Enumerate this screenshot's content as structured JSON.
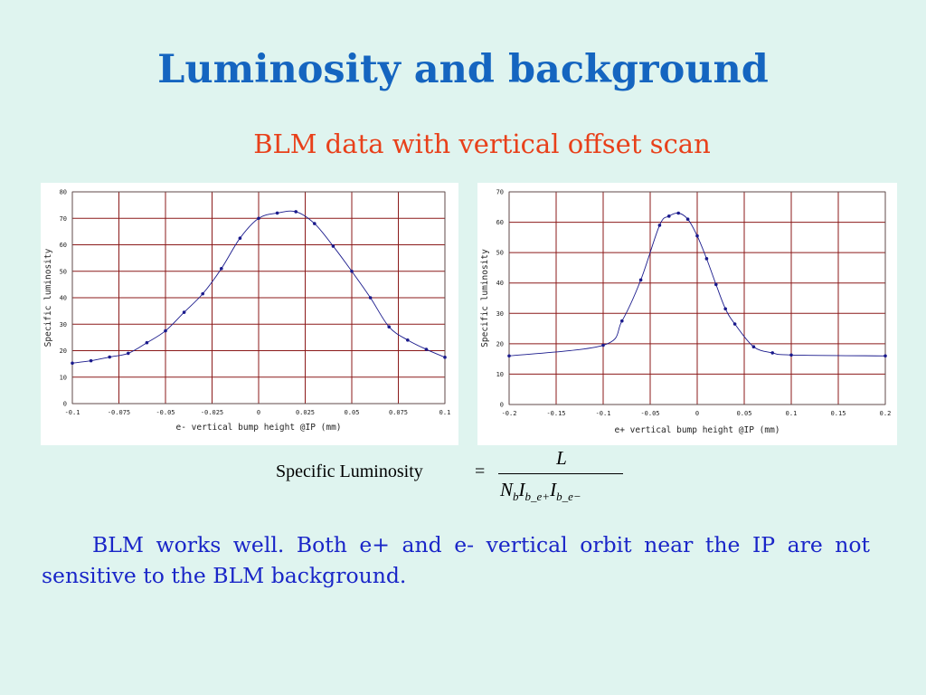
{
  "slide": {
    "title": "Luminosity and background",
    "subtitle": "BLM data with vertical offset scan",
    "body": "BLM works well. Both e+ and e- vertical orbit near the IP are not sensitive to the BLM background."
  },
  "formula": {
    "label": "Specific Luminosity",
    "equals": "=",
    "numerator": "L",
    "denominator": [
      "N",
      "b",
      "I",
      "b_e+",
      "I",
      "b_e−"
    ]
  },
  "colors": {
    "title": "#1565c0",
    "subtitle": "#e8401a",
    "body": "#1a26c8",
    "grid": "#8b1a1a",
    "series": "#1a1a8c"
  },
  "chart_data": [
    {
      "type": "line",
      "xlabel": "e- vertical bump height @IP (mm)",
      "ylabel": "Specific luminosity",
      "xlim": [
        -0.1,
        0.1
      ],
      "ylim": [
        0,
        80
      ],
      "xticks": [
        -0.1,
        -0.075,
        -0.05,
        -0.025,
        0,
        0.025,
        0.05,
        0.075,
        0.1
      ],
      "xtick_labels": [
        "-0.1",
        "-0.075",
        "-0.05",
        "-0.025",
        "0",
        "0.025",
        "0.05",
        "0.075",
        "0.1"
      ],
      "yticks": [
        0,
        10,
        20,
        30,
        40,
        50,
        60,
        70,
        80
      ],
      "ytick_labels": [
        "0",
        "10",
        "20",
        "30",
        "40",
        "50",
        "60",
        "70",
        "80"
      ],
      "grid": true,
      "x": [
        -0.1,
        -0.09,
        -0.08,
        -0.07,
        -0.06,
        -0.05,
        -0.04,
        -0.03,
        -0.02,
        -0.01,
        0,
        0.01,
        0.02,
        0.03,
        0.04,
        0.05,
        0.06,
        0.07,
        0.08,
        0.09,
        0.1
      ],
      "y": [
        15.3,
        16.2,
        17.6,
        19,
        23,
        27.5,
        34.5,
        41.5,
        51,
        62.5,
        70,
        72,
        72.5,
        68,
        59.5,
        50,
        40,
        29,
        24,
        20.5,
        17.5
      ]
    },
    {
      "type": "line",
      "xlabel": "e+ vertical bump height @IP (mm)",
      "ylabel": "Specific luminosity",
      "xlim": [
        -0.2,
        0.2
      ],
      "ylim": [
        0,
        70
      ],
      "xticks": [
        -0.2,
        -0.15,
        -0.1,
        -0.05,
        0,
        0.05,
        0.1,
        0.15,
        0.2
      ],
      "xtick_labels": [
        "-0.2",
        "-0.15",
        "-0.1",
        "-0.05",
        "0",
        "0.05",
        "0.1",
        "0.15",
        "0.2"
      ],
      "yticks": [
        0,
        10,
        20,
        30,
        40,
        50,
        60,
        70
      ],
      "ytick_labels": [
        "0",
        "10",
        "20",
        "30",
        "40",
        "50",
        "60",
        "70"
      ],
      "grid": true,
      "x": [
        -0.2,
        -0.1,
        -0.08,
        -0.06,
        -0.04,
        -0.03,
        -0.02,
        -0.01,
        0,
        0.01,
        0.02,
        0.03,
        0.04,
        0.06,
        0.08,
        0.1,
        0.2
      ],
      "y": [
        16,
        19.5,
        27.5,
        41,
        59,
        62,
        63,
        61,
        55.5,
        48,
        39.5,
        31.5,
        26.5,
        19,
        17,
        16.3,
        16
      ]
    }
  ]
}
